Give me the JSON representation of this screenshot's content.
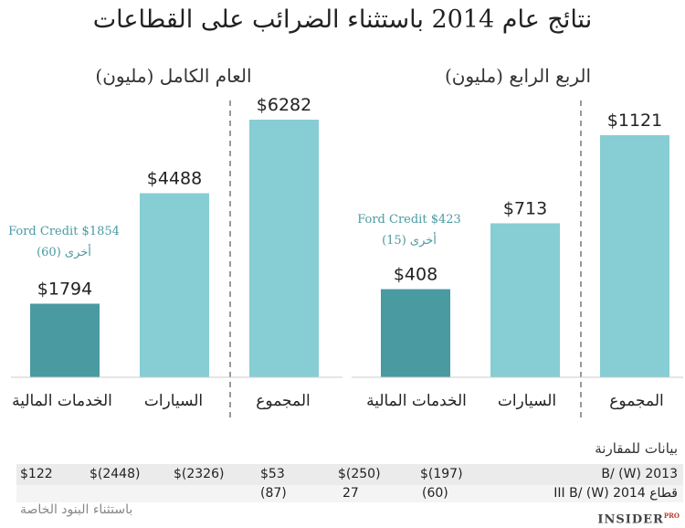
{
  "title": "نتائج عام 2014 باستثناء الضرائب على القطاعات",
  "colors": {
    "dark_bar": "#4a9aa1",
    "light_bar": "#86cdd4",
    "annotation": "#4a9aa1",
    "divider": "#999999"
  },
  "chart_data": [
    {
      "type": "bar",
      "title": "العام الكامل (مليون)",
      "categories": [
        "الخدمات المالية",
        "السيارات",
        "المجموع"
      ],
      "values": [
        1794,
        4488,
        6282
      ],
      "value_labels": [
        "$1794",
        "$4488",
        "$6282"
      ],
      "ylim": [
        0,
        6282
      ],
      "annotation": {
        "line1": "Ford Credit $1854",
        "line2": "أخرى (60)"
      }
    },
    {
      "type": "bar",
      "title": "الربع الرابع (مليون)",
      "categories": [
        "الخدمات المالية",
        "السيارات",
        "المجموع"
      ],
      "values": [
        408,
        713,
        1121
      ],
      "value_labels": [
        "$408",
        "$713",
        "$1121"
      ],
      "ylim": [
        0,
        1121
      ],
      "annotation": {
        "line1": "Ford Credit $423",
        "line2": "أخرى (15)"
      }
    }
  ],
  "comparison": {
    "heading": "بيانات للمقارنة",
    "rows": [
      {
        "label": "B/ (W) 2013",
        "cells": [
          "$122",
          "$(2448)",
          "$(2326)",
          "$53",
          "$(250)",
          "$(197)"
        ]
      },
      {
        "label": "III B/ (W) 2014  قطاع",
        "cells": [
          "",
          "",
          "",
          "(87)",
          "27",
          "(60)"
        ]
      }
    ]
  },
  "footnote": "باستثناء البنود الخاصة",
  "logo": {
    "text": "INSIDER",
    "sup": "PRO"
  }
}
